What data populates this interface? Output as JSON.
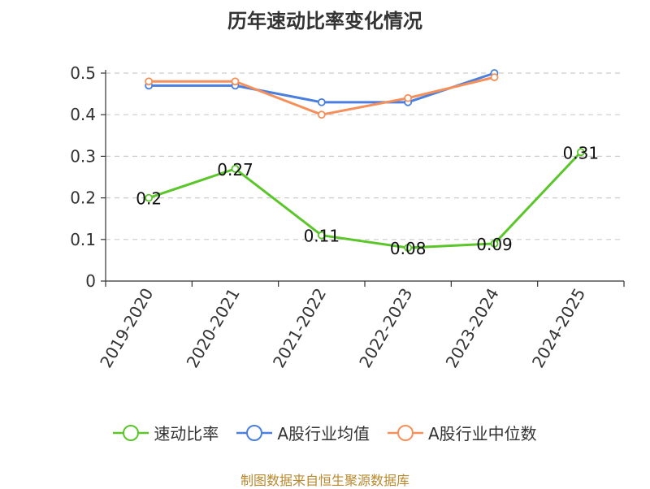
{
  "title": "历年速动比率变化情况",
  "source": "制图数据来自恒生聚源数据库",
  "colors": {
    "series1": "#5bc62a",
    "series2": "#4a7fe0",
    "series3": "#f5905a",
    "grid": "#cccccc",
    "axis": "#333333"
  },
  "chart_data": {
    "type": "line",
    "categories": [
      "2019-2020",
      "2020-2021",
      "2021-2022",
      "2022-2023",
      "2023-2024",
      "2024-2025"
    ],
    "ylim": [
      0,
      0.5
    ],
    "yticks": [
      "0",
      "0.1",
      "0.2",
      "0.3",
      "0.4",
      "0.5"
    ],
    "grid": true,
    "legend_position": "bottom",
    "series": [
      {
        "name": "速动比率",
        "values": [
          0.2,
          0.27,
          0.11,
          0.08,
          0.09,
          0.31
        ],
        "labels": [
          "0.2",
          "0.27",
          "0.11",
          "0.08",
          "0.09",
          "0.31"
        ]
      },
      {
        "name": "A股行业均值",
        "values": [
          0.47,
          0.47,
          0.43,
          0.43,
          0.5,
          null
        ]
      },
      {
        "name": "A股行业中位数",
        "values": [
          0.48,
          0.48,
          0.4,
          0.44,
          0.49,
          null
        ]
      }
    ]
  }
}
